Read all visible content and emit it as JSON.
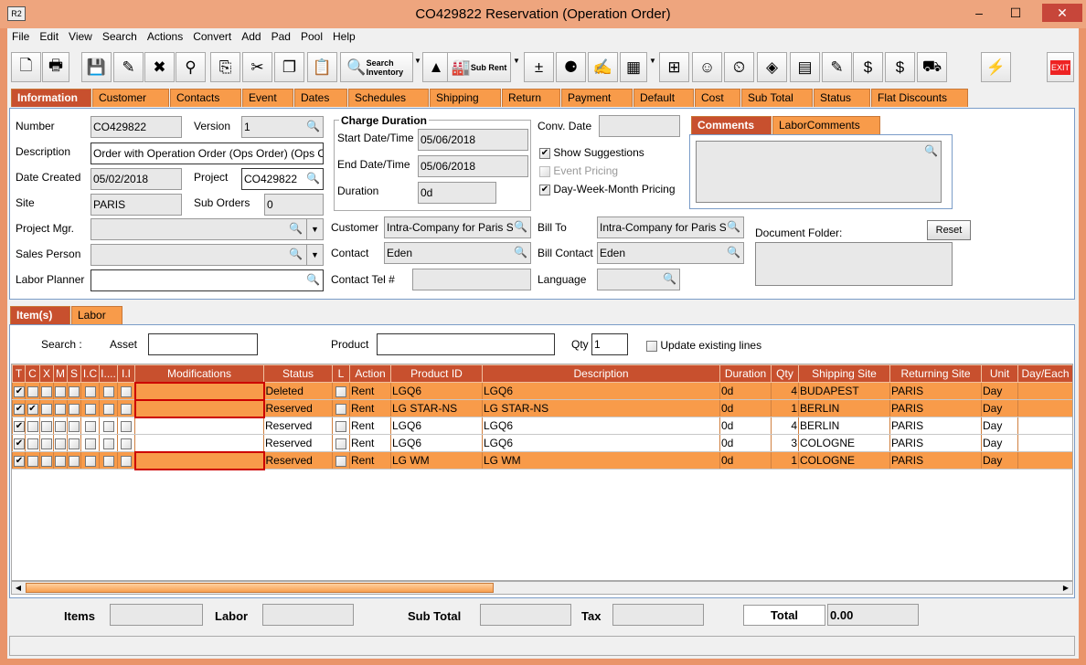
{
  "window": {
    "title": "CO429822 Reservation (Operation Order)",
    "logo": "R2"
  },
  "menu": [
    "File",
    "Edit",
    "View",
    "Search",
    "Actions",
    "Convert",
    "Add",
    "Pad",
    "Pool",
    "Help"
  ],
  "toolbar": {
    "search_inventory": "Search Inventory",
    "sub_rent": "Sub Rent",
    "exit": "EXIT"
  },
  "main_tabs": [
    "Information",
    "Customer",
    "Contacts",
    "Event",
    "Dates",
    "Schedules",
    "Shipping",
    "Return",
    "Payment",
    "Default",
    "Cost",
    "Sub Total",
    "Status",
    "Flat Discounts"
  ],
  "info": {
    "number_label": "Number",
    "number": "CO429822",
    "version_label": "Version",
    "version": "1",
    "description_label": "Description",
    "description": "Order with Operation Order (Ops Order) (Ops Order)",
    "date_created_label": "Date Created",
    "date_created": "05/02/2018",
    "project_label": "Project",
    "project": "CO429822",
    "site_label": "Site",
    "site": "PARIS",
    "sub_orders_label": "Sub Orders",
    "sub_orders": "0",
    "project_mgr_label": "Project Mgr.",
    "sales_person_label": "Sales Person",
    "labor_planner_label": "Labor Planner",
    "charge_duration_title": "Charge Duration",
    "start_label": "Start Date/Time",
    "start": "05/06/2018",
    "end_label": "End Date/Time",
    "end": "05/06/2018",
    "duration_label": "Duration",
    "duration": "0d",
    "customer_label": "Customer",
    "customer": "Intra-Company for Paris Site",
    "contact_label": "Contact",
    "contact": "Eden",
    "contact_tel_label": "Contact Tel #",
    "conv_date_label": "Conv. Date",
    "show_suggestions": "Show Suggestions",
    "event_pricing": "Event Pricing",
    "dwm_pricing": "Day-Week-Month Pricing",
    "bill_to_label": "Bill To",
    "bill_to": "Intra-Company for Paris Site",
    "bill_contact_label": "Bill Contact",
    "bill_contact": "Eden",
    "language_label": "Language",
    "comment_tabs": [
      "Comments",
      "LaborComments"
    ],
    "document_folder_label": "Document Folder:",
    "reset": "Reset"
  },
  "item_tabs": [
    "Item(s)",
    "Labor"
  ],
  "search": {
    "label": "Search :",
    "asset_label": "Asset",
    "product_label": "Product",
    "qty_label": "Qty",
    "qty": "1",
    "update_existing": "Update existing lines"
  },
  "grid": {
    "columns": [
      "T",
      "C",
      "X",
      "M",
      "S",
      "I.C",
      "I....",
      "I.I",
      "Modifications",
      "Status",
      "L",
      "Action",
      "Product ID",
      "Description",
      "Duration",
      "Qty",
      "Shipping Site",
      "Returning Site",
      "Unit",
      "Day/Each"
    ],
    "rows": [
      {
        "checks": [
          true,
          false,
          false,
          false,
          false,
          false,
          false,
          false
        ],
        "status": "Deleted",
        "action": "Rent",
        "product_id": "LGQ6",
        "description": "LGQ6",
        "duration": "0d",
        "qty": "4",
        "shipping": "BUDAPEST",
        "returning": "PARIS",
        "unit": "Day",
        "highlight": true,
        "mod_err": true
      },
      {
        "checks": [
          true,
          true,
          false,
          false,
          false,
          false,
          false,
          false
        ],
        "status": "Reserved",
        "action": "Rent",
        "product_id": "LG STAR-NS",
        "description": "LG STAR-NS",
        "duration": "0d",
        "qty": "1",
        "shipping": "BERLIN",
        "returning": "PARIS",
        "unit": "Day",
        "highlight": true,
        "mod_err": true
      },
      {
        "checks": [
          true,
          false,
          false,
          false,
          false,
          false,
          false,
          false
        ],
        "status": "Reserved",
        "action": "Rent",
        "product_id": "LGQ6",
        "description": "LGQ6",
        "duration": "0d",
        "qty": "4",
        "shipping": "BERLIN",
        "returning": "PARIS",
        "unit": "Day",
        "highlight": false,
        "mod_err": false
      },
      {
        "checks": [
          true,
          false,
          false,
          false,
          false,
          false,
          false,
          false
        ],
        "status": "Reserved",
        "action": "Rent",
        "product_id": "LGQ6",
        "description": "LGQ6",
        "duration": "0d",
        "qty": "3",
        "shipping": "COLOGNE",
        "returning": "PARIS",
        "unit": "Day",
        "highlight": false,
        "mod_err": false
      },
      {
        "checks": [
          true,
          false,
          false,
          false,
          false,
          false,
          false,
          false
        ],
        "status": "Reserved",
        "action": "Rent",
        "product_id": "LG WM",
        "description": "LG WM",
        "duration": "0d",
        "qty": "1",
        "shipping": "COLOGNE",
        "returning": "PARIS",
        "unit": "Day",
        "highlight": true,
        "mod_err": true
      }
    ]
  },
  "totals": {
    "items_label": "Items",
    "labor_label": "Labor",
    "sub_total_label": "Sub Total",
    "tax_label": "Tax",
    "total_label": "Total",
    "total": "0.00"
  },
  "colors": {
    "accent": "#c8502e",
    "tab": "#f89b4a",
    "window": "#e9946a"
  }
}
